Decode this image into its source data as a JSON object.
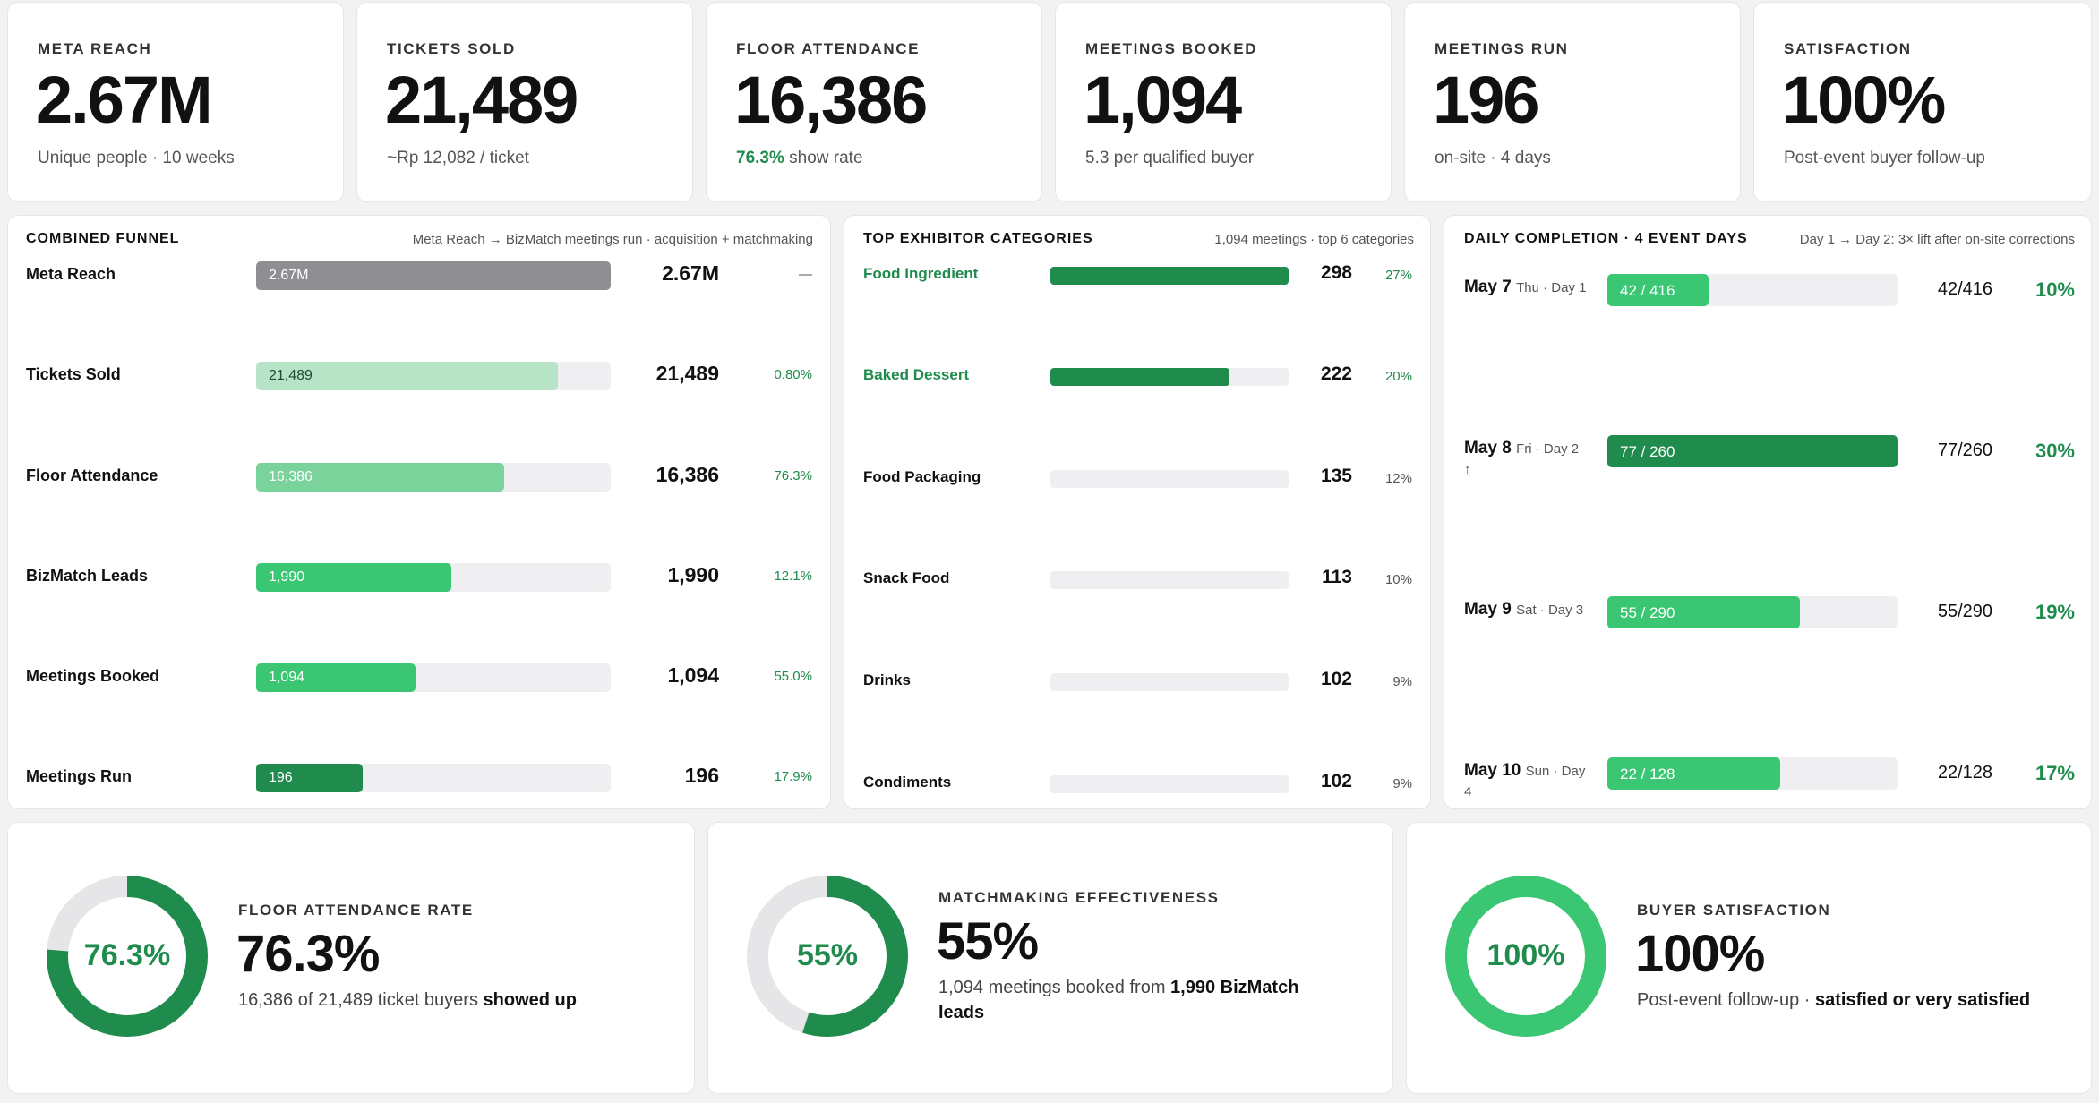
{
  "kpis": [
    {
      "label": "META REACH",
      "value": "2.67M",
      "sub": "Unique people · 10 weeks"
    },
    {
      "label": "TICKETS SOLD",
      "value": "21,489",
      "sub": "~Rp 12,082 / ticket"
    },
    {
      "label": "FLOOR ATTENDANCE",
      "value": "16,386",
      "sub_highlight": "76.3%",
      "sub": " show rate"
    },
    {
      "label": "MEETINGS BOOKED",
      "value": "1,094",
      "sub": "5.3 per qualified buyer"
    },
    {
      "label": "MEETINGS RUN",
      "value": "196",
      "sub": "on-site · 4 days"
    },
    {
      "label": "SATISFACTION",
      "value": "100%",
      "sub": "Post-event buyer follow-up"
    }
  ],
  "funnel": {
    "title": "COMBINED FUNNEL",
    "note": "Meta Reach → BizMatch meetings run · acquisition + matchmaking",
    "rows": [
      {
        "label": "Meta Reach",
        "bar_text": "2.67M",
        "value": "2.67M",
        "pct": "—",
        "fraction": 1.0,
        "color": "#8e8e93"
      },
      {
        "label": "Tickets Sold",
        "bar_text": "21,489",
        "value": "21,489",
        "pct": "0.80%",
        "fraction": 0.85,
        "color": "#b7e4c7"
      },
      {
        "label": "Floor Attendance",
        "bar_text": "16,386",
        "value": "16,386",
        "pct": "76.3%",
        "fraction": 0.7,
        "color": "#7bd39c"
      },
      {
        "label": "BizMatch Leads",
        "bar_text": "1,990",
        "value": "1,990",
        "pct": "12.1%",
        "fraction": 0.55,
        "color": "#3ac672"
      },
      {
        "label": "Meetings Booked",
        "bar_text": "1,094",
        "value": "1,094",
        "pct": "55.0%",
        "fraction": 0.45,
        "color": "#3ac672"
      },
      {
        "label": "Meetings Run",
        "bar_text": "196",
        "value": "196",
        "pct": "17.9%",
        "fraction": 0.3,
        "color": "#1f8b4c"
      }
    ]
  },
  "categories": {
    "title": "TOP EXHIBITOR CATEGORIES",
    "note": "1,094 meetings · top 6 categories",
    "rows": [
      {
        "label": "Food Ingredient",
        "value": "298",
        "pct": "27%",
        "fraction": 1.0,
        "highlight": true
      },
      {
        "label": "Baked Dessert",
        "value": "222",
        "pct": "20%",
        "fraction": 0.75,
        "highlight": true
      },
      {
        "label": "Food Packaging",
        "value": "135",
        "pct": "12%",
        "fraction": 0,
        "highlight": false
      },
      {
        "label": "Snack Food",
        "value": "113",
        "pct": "10%",
        "fraction": 0,
        "highlight": false
      },
      {
        "label": "Drinks",
        "value": "102",
        "pct": "9%",
        "fraction": 0,
        "highlight": false
      },
      {
        "label": "Condiments",
        "value": "102",
        "pct": "9%",
        "fraction": 0,
        "highlight": false
      }
    ]
  },
  "daily": {
    "title": "DAILY COMPLETION · 4 EVENT DAYS",
    "note": "Day 1 → Day 2: 3× lift after on-site corrections",
    "rows": [
      {
        "date": "May 7",
        "meta": "Thu · Day 1",
        "extra": "",
        "bar_text": "42 / 416",
        "ratio": "42/416",
        "pct": "10%",
        "fraction": 0.1,
        "color": "#3ac672"
      },
      {
        "date": "May 8",
        "meta": "Fri · Day 2",
        "extra": "↑",
        "bar_text": "77 / 260",
        "ratio": "77/260",
        "pct": "30%",
        "fraction": 0.3,
        "color": "#1f8b4c"
      },
      {
        "date": "May 9",
        "meta": "Sat · Day 3",
        "extra": "",
        "bar_text": "55 / 290",
        "ratio": "55/290",
        "pct": "19%",
        "fraction": 0.19,
        "color": "#3ac672"
      },
      {
        "date": "May 10",
        "meta": "Sun · Day",
        "extra": "4",
        "bar_text": "22 / 128",
        "ratio": "22/128",
        "pct": "17%",
        "fraction": 0.17,
        "color": "#3ac672"
      }
    ]
  },
  "summaries": [
    {
      "label": "FLOOR ATTENDANCE RATE",
      "center": "76.3%",
      "big": "76.3%",
      "fraction": 0.763,
      "color": "#1f8b4c",
      "sub_a": "16,386 of 21,489 ticket buyers ",
      "sub_b": "showed up",
      "sub_c": ""
    },
    {
      "label": "MATCHMAKING EFFECTIVENESS",
      "center": "55%",
      "big": "55%",
      "fraction": 0.55,
      "color": "#1f8b4c",
      "sub_a": "1,094 meetings booked from ",
      "sub_b": "1,990 BizMatch",
      "sub_c": "leads"
    },
    {
      "label": "BUYER SATISFACTION",
      "center": "100%",
      "big": "100%",
      "fraction": 1.0,
      "color": "#3ac672",
      "sub_a": "Post-event follow-up · ",
      "sub_b": "satisfied or very satisfied",
      "sub_c": ""
    }
  ]
}
